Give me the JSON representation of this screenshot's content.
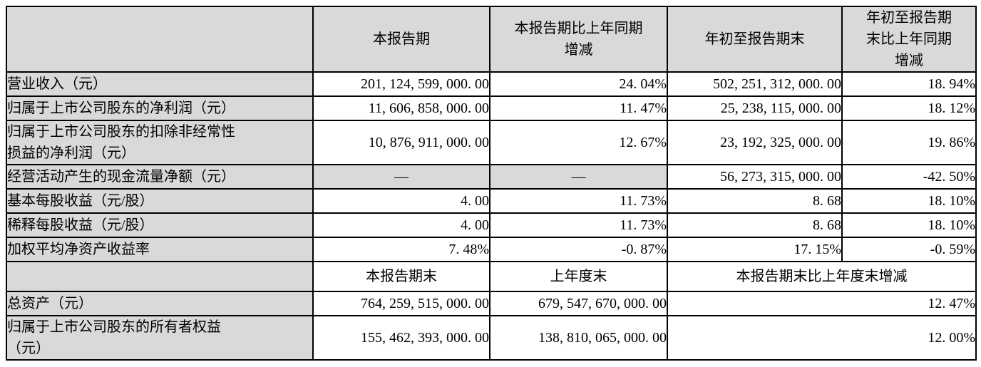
{
  "table": {
    "colors": {
      "shaded_cell_bg": "#d9d9d9",
      "data_cell_bg": "#ffffff",
      "border": "#000000",
      "text": "#000000"
    },
    "header_row_1": {
      "corner": "",
      "columns": [
        "本报告期",
        "本报告期比上年同期增减",
        "年初至报告期末",
        "年初至报告期末比上年同期增减"
      ]
    },
    "rows_period": [
      {
        "label": "营业收入（元）",
        "values": [
          "201, 124, 599, 000. 00",
          "24. 04%",
          "502, 251, 312, 000. 00",
          "18. 94%"
        ]
      },
      {
        "label": "归属于上市公司股东的净利润（元）",
        "values": [
          "11, 606, 858, 000. 00",
          "11. 47%",
          "25, 238, 115, 000. 00",
          "18. 12%"
        ]
      },
      {
        "label": "归属于上市公司股东的扣除非经常性损益的净利润（元）",
        "values": [
          "10, 876, 911, 000. 00",
          "12. 67%",
          "23, 192, 325, 000. 00",
          "19. 86%"
        ]
      },
      {
        "label": "经营活动产生的现金流量净额（元）",
        "values": [
          "—",
          "—",
          "56, 273, 315, 000. 00",
          "-42. 50%"
        ]
      },
      {
        "label": "基本每股收益（元/股）",
        "values": [
          "4. 00",
          "11. 73%",
          "8. 68",
          "18. 10%"
        ]
      },
      {
        "label": "稀释每股收益（元/股）",
        "values": [
          "4. 00",
          "11. 73%",
          "8. 68",
          "18. 10%"
        ]
      },
      {
        "label": "加权平均净资产收益率",
        "values": [
          "7. 48%",
          "-0. 87%",
          "17. 15%",
          "-0. 59%"
        ]
      }
    ],
    "header_row_2": {
      "corner": "",
      "columns": [
        "本报告期末",
        "上年度末",
        "本报告期末比上年度末增减"
      ]
    },
    "rows_balance": [
      {
        "label": "总资产（元）",
        "values": [
          "764, 259, 515, 000. 00",
          "679, 547, 670, 000. 00",
          "12. 47%"
        ]
      },
      {
        "label": "归属于上市公司股东的所有者权益（元）",
        "values": [
          "155, 462, 393, 000. 00",
          "138, 810, 065, 000. 00",
          "12. 00%"
        ]
      }
    ]
  }
}
